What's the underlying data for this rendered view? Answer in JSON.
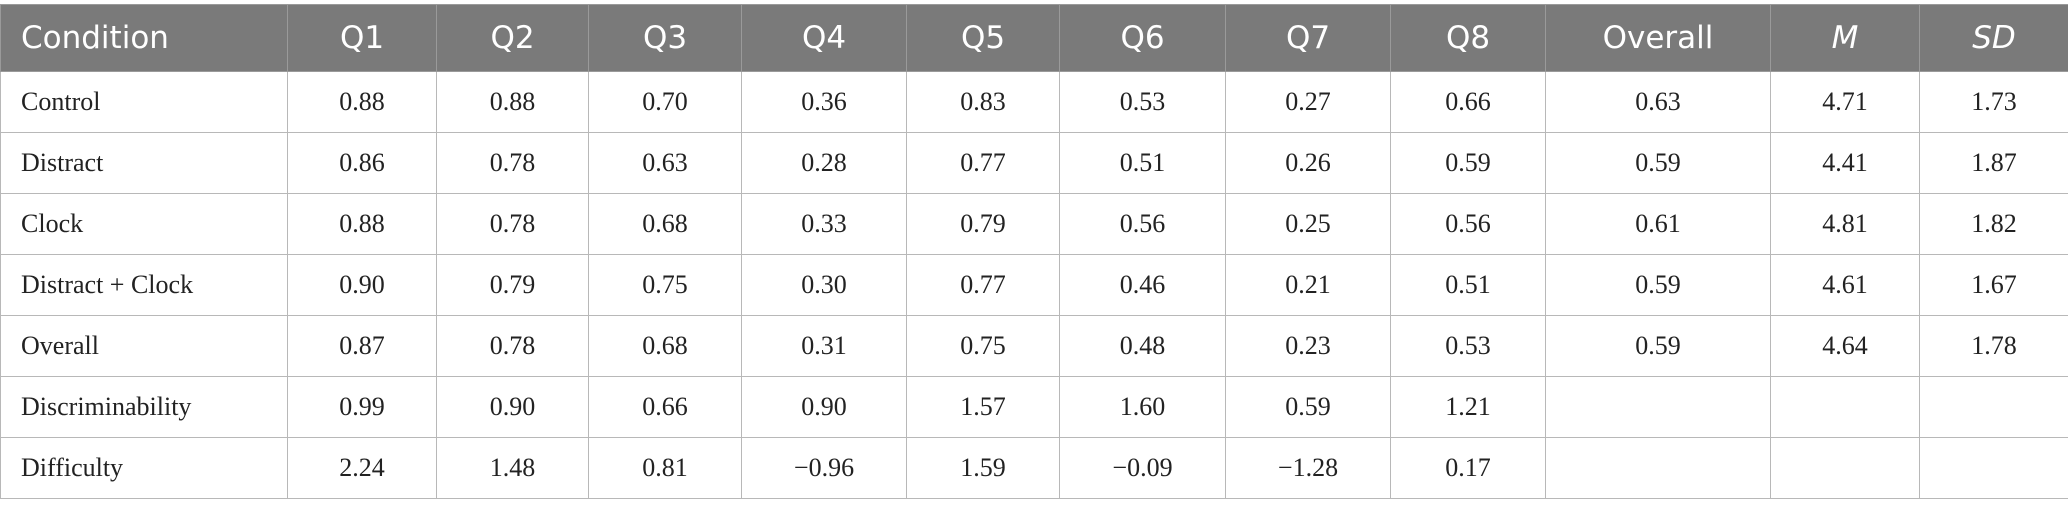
{
  "table": {
    "headers": [
      {
        "text": "Condition",
        "italic": false
      },
      {
        "text": "Q1",
        "italic": false
      },
      {
        "text": "Q2",
        "italic": false
      },
      {
        "text": "Q3",
        "italic": false
      },
      {
        "text": "Q4",
        "italic": false
      },
      {
        "text": "Q5",
        "italic": false
      },
      {
        "text": "Q6",
        "italic": false
      },
      {
        "text": "Q7",
        "italic": false
      },
      {
        "text": "Q8",
        "italic": false
      },
      {
        "text": "Overall",
        "italic": false
      },
      {
        "text": "M",
        "italic": true
      },
      {
        "text": "SD",
        "italic": true
      }
    ],
    "rows": [
      [
        "Control",
        "0.88",
        "0.88",
        "0.70",
        "0.36",
        "0.83",
        "0.53",
        "0.27",
        "0.66",
        "0.63",
        "4.71",
        "1.73"
      ],
      [
        "Distract",
        "0.86",
        "0.78",
        "0.63",
        "0.28",
        "0.77",
        "0.51",
        "0.26",
        "0.59",
        "0.59",
        "4.41",
        "1.87"
      ],
      [
        "Clock",
        "0.88",
        "0.78",
        "0.68",
        "0.33",
        "0.79",
        "0.56",
        "0.25",
        "0.56",
        "0.61",
        "4.81",
        "1.82"
      ],
      [
        "Distract + Clock",
        "0.90",
        "0.79",
        "0.75",
        "0.30",
        "0.77",
        "0.46",
        "0.21",
        "0.51",
        "0.59",
        "4.61",
        "1.67"
      ],
      [
        "Overall",
        "0.87",
        "0.78",
        "0.68",
        "0.31",
        "0.75",
        "0.48",
        "0.23",
        "0.53",
        "0.59",
        "4.64",
        "1.78"
      ],
      [
        "Discriminability",
        "0.99",
        "0.90",
        "0.66",
        "0.90",
        "1.57",
        "1.60",
        "0.59",
        "1.21",
        "",
        "",
        ""
      ],
      [
        "Difficulty",
        "2.24",
        "1.48",
        "0.81",
        "−0.96",
        "1.59",
        "−0.09",
        "−1.28",
        "0.17",
        "",
        "",
        ""
      ]
    ]
  },
  "colors": {
    "header_background": "#7a7a7a",
    "header_text": "#ffffff",
    "grid_lines": "#b8b8b8",
    "body_text": "#222222"
  }
}
